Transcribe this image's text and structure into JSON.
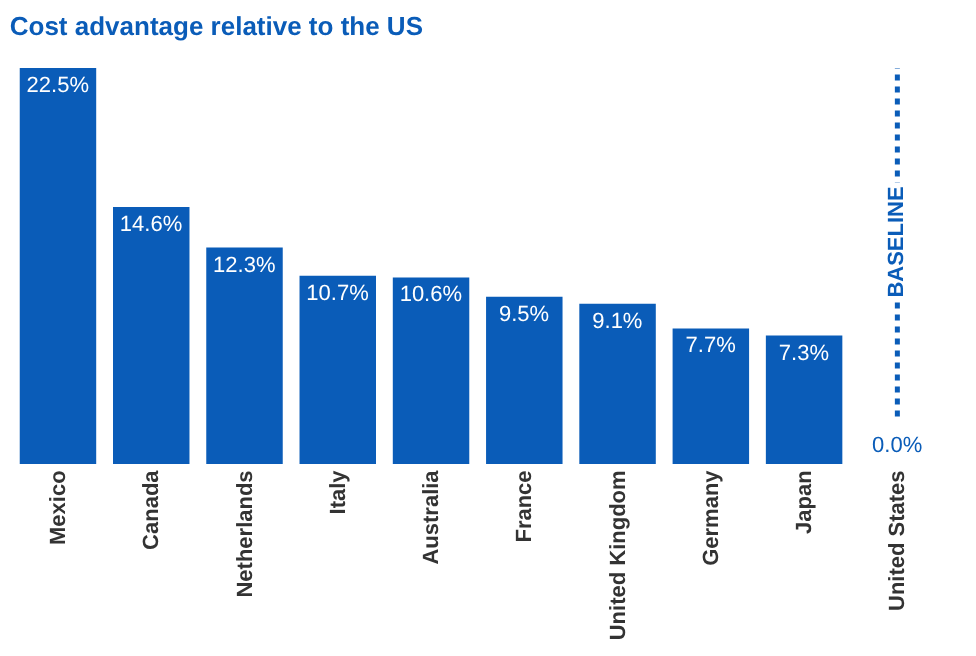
{
  "chart_data": {
    "type": "bar",
    "title": "Cost advantage relative to the US",
    "categories": [
      "Mexico",
      "Canada",
      "Netherlands",
      "Italy",
      "Australia",
      "France",
      "United Kingdom",
      "Germany",
      "Japan",
      "United States"
    ],
    "values": [
      22.5,
      14.6,
      12.3,
      10.7,
      10.6,
      9.5,
      9.1,
      7.7,
      7.3,
      0.0
    ],
    "value_labels": [
      "22.5%",
      "14.6%",
      "12.3%",
      "10.7%",
      "10.6%",
      "9.5%",
      "9.1%",
      "7.7%",
      "7.3%",
      "0.0%"
    ],
    "color": "#0a5cb8",
    "ref_lines": [
      {
        "axis": "x",
        "value": "United States",
        "label": "BASELINE",
        "color": "#0a5cb8",
        "line_style": "dotted"
      }
    ],
    "legend": false
  }
}
